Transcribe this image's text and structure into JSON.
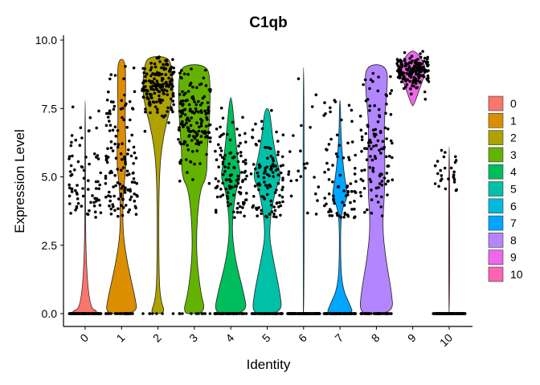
{
  "chart_data": {
    "type": "violin",
    "title": "C1qb",
    "xlabel": "Identity",
    "ylabel": "Expression Level",
    "ylim": [
      0,
      10
    ],
    "yticks": [
      "0.0",
      "2.5",
      "5.0",
      "7.5",
      "10.0"
    ],
    "categories": [
      "0",
      "1",
      "2",
      "3",
      "4",
      "5",
      "6",
      "7",
      "8",
      "9",
      "10"
    ],
    "legend_position": "right",
    "grid": false,
    "series": [
      {
        "name": "0",
        "color": "#F8766D",
        "zero_fraction": 0.45,
        "range": [
          0,
          7.8
        ],
        "mode": 5.0
      },
      {
        "name": "1",
        "color": "#DB8E00",
        "zero_fraction": 0.25,
        "range": [
          0,
          9.3
        ],
        "mode": 5.5
      },
      {
        "name": "2",
        "color": "#AEA200",
        "zero_fraction": 0.05,
        "range": [
          0,
          9.4
        ],
        "mode": 8.3
      },
      {
        "name": "3",
        "color": "#64B200",
        "zero_fraction": 0.1,
        "range": [
          0,
          9.1
        ],
        "mode": 7.0
      },
      {
        "name": "4",
        "color": "#00BD5C",
        "zero_fraction": 0.4,
        "range": [
          0,
          7.9
        ],
        "mode": 5.0
      },
      {
        "name": "5",
        "color": "#00C1A7",
        "zero_fraction": 0.35,
        "range": [
          0,
          7.5
        ],
        "mode": 5.0
      },
      {
        "name": "6",
        "color": "#00BADE",
        "zero_fraction": 0.85,
        "range": [
          0,
          9.0
        ],
        "mode": 5.2
      },
      {
        "name": "7",
        "color": "#00A6FF",
        "zero_fraction": 0.55,
        "range": [
          0,
          7.8
        ],
        "mode": 4.3
      },
      {
        "name": "8",
        "color": "#B385FF",
        "zero_fraction": 0.35,
        "range": [
          0,
          9.1
        ],
        "mode": 6.0
      },
      {
        "name": "9",
        "color": "#EF67EB",
        "zero_fraction": 0.0,
        "range": [
          7.6,
          9.6
        ],
        "mode": 8.9
      },
      {
        "name": "10",
        "color": "#FF63B6",
        "zero_fraction": 0.85,
        "range": [
          0,
          6.1
        ],
        "mode": 5.2
      }
    ]
  }
}
